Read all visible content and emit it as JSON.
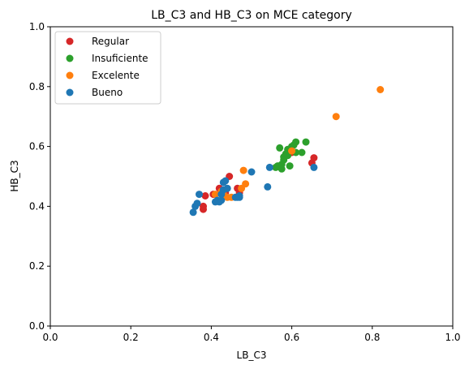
{
  "chart_data": {
    "type": "scatter",
    "title": "LB_C3 and HB_C3 on MCE category",
    "xlabel": "LB_C3",
    "ylabel": "HB_C3",
    "xlim": [
      0,
      1
    ],
    "ylim": [
      0,
      1
    ],
    "xticks": [
      "0.0",
      "0.2",
      "0.4",
      "0.6",
      "0.8",
      "1.0"
    ],
    "yticks": [
      "0.0",
      "0.2",
      "0.4",
      "0.6",
      "0.8",
      "1.0"
    ],
    "grid": false,
    "legend_position": "top-left",
    "series": [
      {
        "name": "Regular",
        "color": "#d62728",
        "points": [
          [
            0.385,
            0.435
          ],
          [
            0.38,
            0.39
          ],
          [
            0.38,
            0.4
          ],
          [
            0.405,
            0.44
          ],
          [
            0.42,
            0.46
          ],
          [
            0.435,
            0.445
          ],
          [
            0.445,
            0.5
          ],
          [
            0.465,
            0.46
          ],
          [
            0.47,
            0.445
          ],
          [
            0.65,
            0.545
          ],
          [
            0.655,
            0.562
          ],
          [
            0.6,
            0.58
          ]
        ]
      },
      {
        "name": "Insuficiente",
        "color": "#2ca02c",
        "points": [
          [
            0.56,
            0.53
          ],
          [
            0.57,
            0.595
          ],
          [
            0.575,
            0.54
          ],
          [
            0.58,
            0.555
          ],
          [
            0.58,
            0.565
          ],
          [
            0.585,
            0.575
          ],
          [
            0.59,
            0.57
          ],
          [
            0.595,
            0.535
          ],
          [
            0.6,
            0.6
          ],
          [
            0.605,
            0.605
          ],
          [
            0.61,
            0.615
          ],
          [
            0.61,
            0.58
          ],
          [
            0.625,
            0.58
          ],
          [
            0.635,
            0.615
          ],
          [
            0.565,
            0.535
          ],
          [
            0.575,
            0.525
          ],
          [
            0.59,
            0.59
          ]
        ]
      },
      {
        "name": "Excelente",
        "color": "#ff7f0e",
        "points": [
          [
            0.82,
            0.79
          ],
          [
            0.71,
            0.7
          ],
          [
            0.6,
            0.585
          ],
          [
            0.48,
            0.52
          ],
          [
            0.485,
            0.475
          ],
          [
            0.475,
            0.46
          ],
          [
            0.44,
            0.43
          ],
          [
            0.45,
            0.43
          ],
          [
            0.43,
            0.44
          ],
          [
            0.41,
            0.44
          ],
          [
            0.425,
            0.45
          ]
        ]
      },
      {
        "name": "Bueno",
        "color": "#1f77b4",
        "points": [
          [
            0.355,
            0.38
          ],
          [
            0.36,
            0.4
          ],
          [
            0.365,
            0.41
          ],
          [
            0.37,
            0.44
          ],
          [
            0.41,
            0.415
          ],
          [
            0.415,
            0.42
          ],
          [
            0.42,
            0.415
          ],
          [
            0.425,
            0.42
          ],
          [
            0.425,
            0.44
          ],
          [
            0.43,
            0.455
          ],
          [
            0.43,
            0.48
          ],
          [
            0.435,
            0.485
          ],
          [
            0.44,
            0.46
          ],
          [
            0.46,
            0.43
          ],
          [
            0.465,
            0.43
          ],
          [
            0.47,
            0.435
          ],
          [
            0.47,
            0.43
          ],
          [
            0.5,
            0.515
          ],
          [
            0.54,
            0.465
          ],
          [
            0.545,
            0.53
          ],
          [
            0.655,
            0.53
          ]
        ]
      }
    ]
  }
}
